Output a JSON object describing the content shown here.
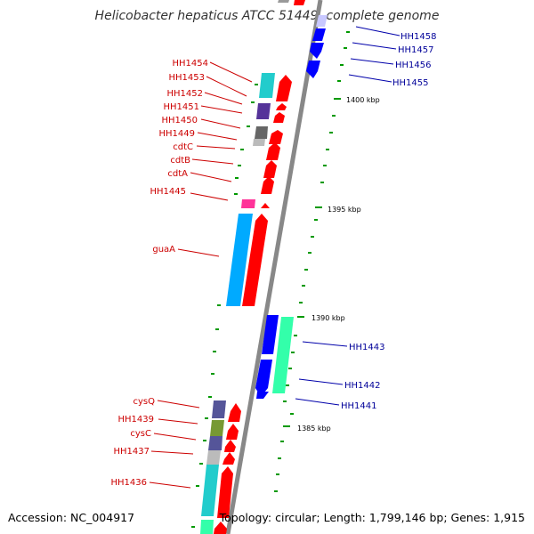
{
  "title": "Helicobacter hepaticus ATCC 51449, complete genome",
  "footer": {
    "accession": "Accession: NC_004917",
    "summary": "Topology: circular; Length: 1,799,146 bp; Genes: 1,915"
  },
  "colors": {
    "backbone": "#808080",
    "forward_gene": "#ff0000",
    "reverse_gene": "#0000ff",
    "label_left": "#cc0000",
    "label_right": "#000099",
    "tick": "#009900"
  },
  "scale_ticks": [
    {
      "label": "1400 kbp"
    },
    {
      "label": "1395 kbp"
    },
    {
      "label": "1390 kbp"
    },
    {
      "label": "1385 kbp"
    }
  ],
  "left_labels": [
    "HH1454",
    "HH1453",
    "HH1452",
    "HH1451",
    "HH1450",
    "HH1449",
    "cdtC",
    "cdtB",
    "cdtA",
    "HH1445",
    "guaA",
    "cysQ",
    "HH1439",
    "cysC",
    "HH1437",
    "HH1436"
  ],
  "right_labels": [
    "HH1458",
    "HH1457",
    "HH1456",
    "HH1455",
    "HH1443",
    "HH1442",
    "HH1441"
  ]
}
